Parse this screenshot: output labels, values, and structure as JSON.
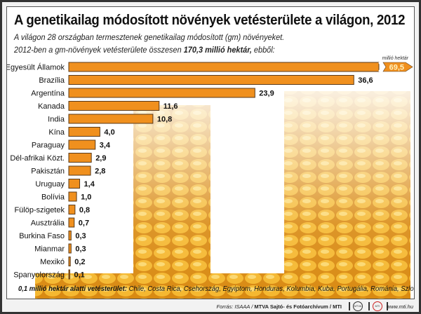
{
  "title": "A genetikailag módosított növények vetésterülete a világon, 2012",
  "subtitle_line1": "A világon 28 országban termesztenek genetikailag módosított (gm) növényeket.",
  "subtitle_line2_pre": "2012-ben a gm-növények vetésterülete összesen ",
  "subtitle_line2_bold": "170,3 millió hektár,",
  "subtitle_line2_post": " ebből:",
  "note_bold": "0,1 millió hektár alatti vetésterület:",
  "note_text": " Chile, Costa Rica, Csehország, Egyiptom, Honduras, Kolumbia, Kuba, Portugália, Románia, Szlovákia, Szudán",
  "footer": {
    "source_pre": "Forrás: ISAAA / ",
    "source_bold": "MTVA Sajtó- és Fotóarchívum / MTI",
    "logo1": "MTVA",
    "logo2": "MTI",
    "url": "www.mti.hu"
  },
  "colors": {
    "bar": "#f0901e",
    "bar_border": "#5a3a1a",
    "big_value": "#fff3c0"
  },
  "chart_data": {
    "type": "bar",
    "orientation": "horizontal",
    "title": "A genetikailag módosított növények vetésterülete a világon, 2012",
    "unit_label": "millió hektár",
    "categories": [
      "Egyesült Államok",
      "Brazília",
      "Argentína",
      "Kanada",
      "India",
      "Kína",
      "Paraguay",
      "Dél-afrikai Közt.",
      "Pakisztán",
      "Uruguay",
      "Bolívia",
      "Fülöp-szigetek",
      "Ausztrália",
      "Burkina Faso",
      "Mianmar",
      "Mexikó",
      "Spanyolország"
    ],
    "values": [
      69.5,
      36.6,
      23.9,
      11.6,
      10.8,
      4.0,
      3.4,
      2.9,
      2.8,
      1.4,
      1.0,
      0.8,
      0.7,
      0.3,
      0.3,
      0.2,
      0.1
    ],
    "value_labels": [
      "69,5",
      "36,6",
      "23,9",
      "11,6",
      "10,8",
      "4,0",
      "3,4",
      "2,9",
      "2,8",
      "1,4",
      "1,0",
      "0,8",
      "0,7",
      "0,3",
      "0,3",
      "0,2",
      "0,1"
    ],
    "broken_axis_category": "Egyesült Államok",
    "xlabel": "",
    "ylabel": "",
    "grid": false
  }
}
